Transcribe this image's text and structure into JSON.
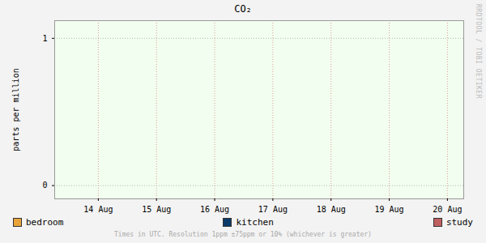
{
  "chart_data": {
    "type": "line",
    "title": "CO₂",
    "y_label": "parts per million",
    "caption": "Times in UTC. Resolution 1ppm ±75ppm or 10% (whichever is greater)",
    "annotations": [
      "RRDTOOL / TOBI OETIKER"
    ],
    "x": [],
    "xlim": [
      13.75,
      20.78
    ],
    "xticks": [
      {
        "value": 14.5,
        "label": "14 Aug"
      },
      {
        "value": 15.5,
        "label": "15 Aug"
      },
      {
        "value": 16.5,
        "label": "16 Aug"
      },
      {
        "value": 17.5,
        "label": "17 Aug"
      },
      {
        "value": 18.5,
        "label": "18 Aug"
      },
      {
        "value": 19.5,
        "label": "19 Aug"
      },
      {
        "value": 20.5,
        "label": "20 Aug"
      }
    ],
    "ylim": [
      -0.09,
      1.12
    ],
    "yticks": [
      0,
      1
    ],
    "grid": true,
    "legend": "bottom",
    "series": [
      {
        "name": "bedroom",
        "color": "#e8a43a",
        "values": []
      },
      {
        "name": "kitchen",
        "color": "#0b3b6b",
        "values": []
      },
      {
        "name": "study",
        "color": "#c06060",
        "values": []
      }
    ]
  }
}
